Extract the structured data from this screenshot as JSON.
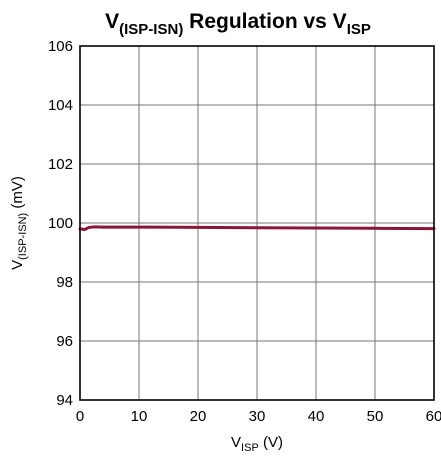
{
  "chart_data": {
    "type": "line",
    "title": {
      "main": "V",
      "sub": "(ISP-ISN)",
      "mid": " Regulation vs V",
      "sub2": "ISP"
    },
    "xlabel": {
      "main": "V",
      "sub": "ISP",
      "rest": " (V)"
    },
    "ylabel": {
      "main": "V",
      "sub": "(ISP-ISN)",
      "rest": " (mV)"
    },
    "xlim": [
      0,
      60
    ],
    "ylim": [
      94,
      106
    ],
    "xticks": [
      0,
      10,
      20,
      30,
      40,
      50,
      60
    ],
    "yticks": [
      94,
      96,
      98,
      100,
      102,
      104,
      106
    ],
    "grid": true,
    "series": [
      {
        "color": "#8b1537",
        "x": [
          0,
          0.8,
          1.5,
          2.5,
          4,
          8,
          12,
          20,
          30,
          40,
          50,
          60
        ],
        "y": [
          99.8,
          99.78,
          99.85,
          99.87,
          99.86,
          99.86,
          99.86,
          99.85,
          99.84,
          99.83,
          99.82,
          99.81
        ]
      }
    ]
  }
}
